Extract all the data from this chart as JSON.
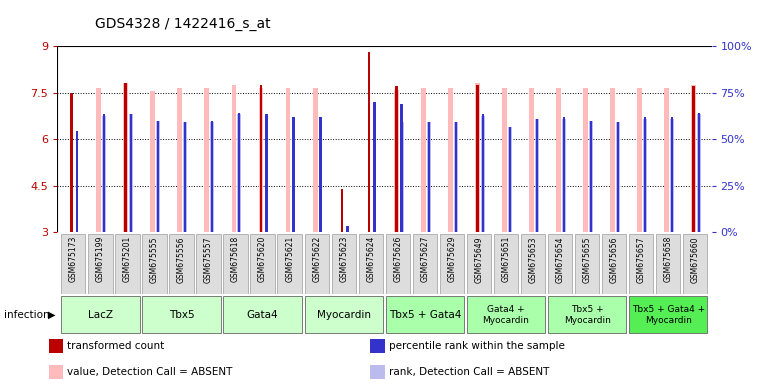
{
  "title": "GDS4328 / 1422416_s_at",
  "samples": [
    "GSM675173",
    "GSM675199",
    "GSM675201",
    "GSM675555",
    "GSM675556",
    "GSM675557",
    "GSM675618",
    "GSM675620",
    "GSM675621",
    "GSM675622",
    "GSM675623",
    "GSM675624",
    "GSM675626",
    "GSM675627",
    "GSM675629",
    "GSM675649",
    "GSM675651",
    "GSM675653",
    "GSM675654",
    "GSM675655",
    "GSM675656",
    "GSM675657",
    "GSM675658",
    "GSM675660"
  ],
  "red_values": [
    7.5,
    3.0,
    7.8,
    3.0,
    3.0,
    3.0,
    3.0,
    7.75,
    3.0,
    3.0,
    4.4,
    8.8,
    7.7,
    3.0,
    3.0,
    7.75,
    3.0,
    3.0,
    3.0,
    3.0,
    3.0,
    3.0,
    3.0,
    7.7
  ],
  "pink_values": [
    3.0,
    7.65,
    7.8,
    7.55,
    7.65,
    7.65,
    7.75,
    7.65,
    7.65,
    7.65,
    3.0,
    3.0,
    7.6,
    7.65,
    7.65,
    7.8,
    7.65,
    7.65,
    7.65,
    7.65,
    7.65,
    7.65,
    7.65,
    7.75
  ],
  "blue_values": [
    6.25,
    6.8,
    6.8,
    6.6,
    6.55,
    6.6,
    6.85,
    6.8,
    6.7,
    6.7,
    3.2,
    7.2,
    7.15,
    6.55,
    6.55,
    6.8,
    6.4,
    6.65,
    6.7,
    6.6,
    6.55,
    6.7,
    6.7,
    6.85
  ],
  "lightblue_values": [
    3.0,
    6.75,
    6.8,
    6.6,
    6.55,
    6.55,
    6.8,
    6.7,
    6.65,
    6.65,
    3.0,
    3.0,
    6.55,
    6.55,
    6.55,
    6.75,
    6.4,
    6.65,
    6.65,
    6.6,
    6.55,
    6.65,
    6.65,
    6.8
  ],
  "groups": [
    {
      "label": "LacZ",
      "start": 0,
      "end": 3,
      "color": "#ccffcc"
    },
    {
      "label": "Tbx5",
      "start": 3,
      "end": 6,
      "color": "#ccffcc"
    },
    {
      "label": "Gata4",
      "start": 6,
      "end": 9,
      "color": "#ccffcc"
    },
    {
      "label": "Myocardin",
      "start": 9,
      "end": 12,
      "color": "#ccffcc"
    },
    {
      "label": "Tbx5 + Gata4",
      "start": 12,
      "end": 15,
      "color": "#aaffaa"
    },
    {
      "label": "Gata4 +\nMyocardin",
      "start": 15,
      "end": 18,
      "color": "#aaffaa"
    },
    {
      "label": "Tbx5 +\nMyocardin",
      "start": 18,
      "end": 21,
      "color": "#aaffaa"
    },
    {
      "label": "Tbx5 + Gata4 +\nMyocardin",
      "start": 21,
      "end": 24,
      "color": "#55ee55"
    }
  ],
  "ylim": [
    3.0,
    9.0
  ],
  "yticks": [
    3.0,
    4.5,
    6.0,
    7.5,
    9.0
  ],
  "ytick_labels": [
    "3",
    "4.5",
    "6",
    "7.5",
    "9"
  ],
  "y2ticks_pct": [
    0,
    25,
    50,
    75,
    100
  ],
  "color_red": "#bb0000",
  "color_pink": "#ffbbbb",
  "color_blue": "#3333cc",
  "color_lightblue": "#bbbbee",
  "background_color": "#ffffff",
  "title_fontsize": 10,
  "grid_dotted_at": [
    4.5,
    6.0,
    7.5
  ]
}
